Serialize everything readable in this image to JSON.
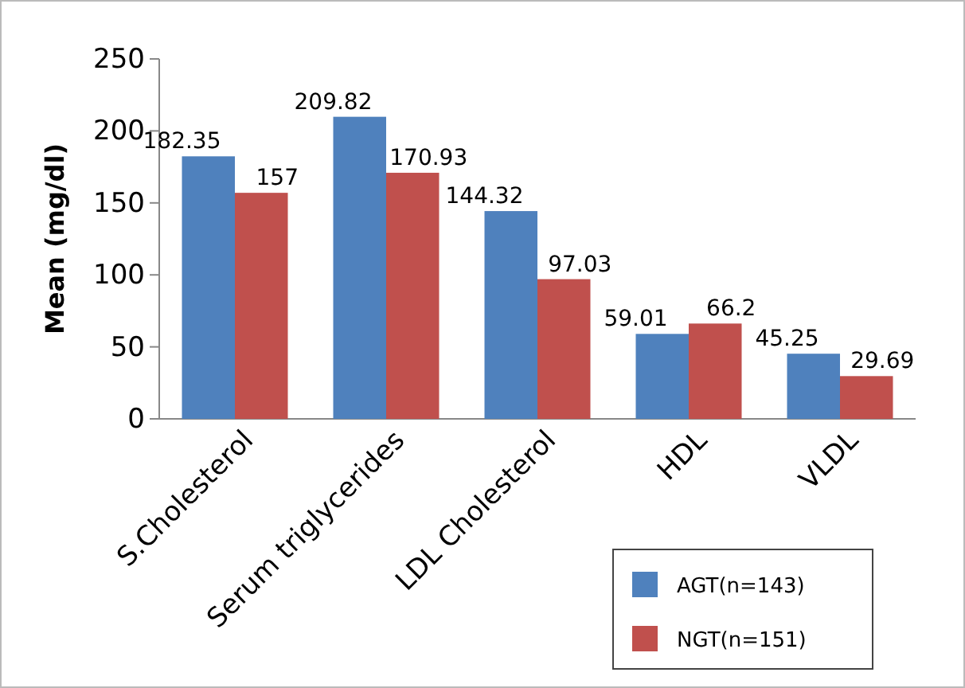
{
  "chart_data": {
    "type": "bar",
    "ylabel": "Mean (mg/dl)",
    "categories": [
      "S.Cholesterol",
      "Serum triglycerides",
      "LDL Cholesterol",
      "HDL",
      "VLDL"
    ],
    "series": [
      {
        "name": "AGT(n=143)",
        "color": "#4f81bd",
        "values": [
          182.35,
          209.82,
          144.32,
          59.01,
          45.25
        ]
      },
      {
        "name": "NGT(n=151)",
        "color": "#c0504d",
        "values": [
          157,
          170.93,
          97.03,
          66.2,
          29.69
        ]
      }
    ],
    "ylim": [
      0,
      250
    ],
    "yticks": [
      0,
      50,
      100,
      150,
      200,
      250
    ],
    "data_labels": true,
    "legend": "bottom right",
    "grid": false
  }
}
